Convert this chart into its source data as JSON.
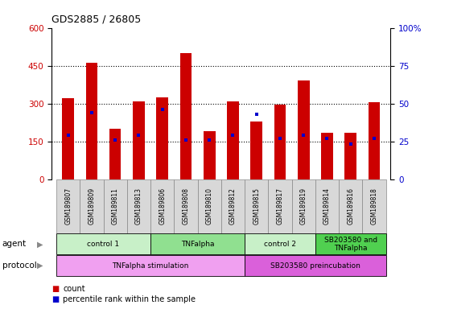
{
  "title": "GDS2885 / 26805",
  "samples": [
    "GSM189807",
    "GSM189809",
    "GSM189811",
    "GSM189813",
    "GSM189806",
    "GSM189808",
    "GSM189810",
    "GSM189812",
    "GSM189815",
    "GSM189817",
    "GSM189819",
    "GSM189814",
    "GSM189816",
    "GSM189818"
  ],
  "count_values": [
    320,
    460,
    200,
    310,
    325,
    500,
    190,
    310,
    230,
    295,
    390,
    185,
    185,
    305
  ],
  "percentile_values": [
    29,
    44,
    26,
    29,
    46,
    26,
    26,
    29,
    43,
    27,
    29,
    27,
    23,
    27
  ],
  "ylim_left": [
    0,
    600
  ],
  "ylim_right": [
    0,
    100
  ],
  "yticks_left": [
    0,
    150,
    300,
    450,
    600
  ],
  "yticks_right": [
    0,
    25,
    50,
    75,
    100
  ],
  "ytick_right_labels": [
    "0",
    "25",
    "50",
    "75",
    "100%"
  ],
  "agent_groups": [
    {
      "label": "control 1",
      "start": 0,
      "end": 4,
      "color": "#c8f0c8"
    },
    {
      "label": "TNFalpha",
      "start": 4,
      "end": 8,
      "color": "#90e090"
    },
    {
      "label": "control 2",
      "start": 8,
      "end": 11,
      "color": "#c8f0c8"
    },
    {
      "label": "SB203580 and\nTNFalpha",
      "start": 11,
      "end": 14,
      "color": "#50d050"
    }
  ],
  "protocol_groups": [
    {
      "label": "TNFalpha stimulation",
      "start": 0,
      "end": 8,
      "color": "#f0a0f0"
    },
    {
      "label": "SB203580 preincubation",
      "start": 8,
      "end": 14,
      "color": "#da60da"
    }
  ],
  "bar_color": "#cc0000",
  "percentile_color": "#0000cc",
  "tick_label_color_left": "#cc0000",
  "tick_label_color_right": "#0000cc",
  "bar_width": 0.5,
  "sample_box_color": "#d8d8d8",
  "sample_box_edge": "#888888"
}
